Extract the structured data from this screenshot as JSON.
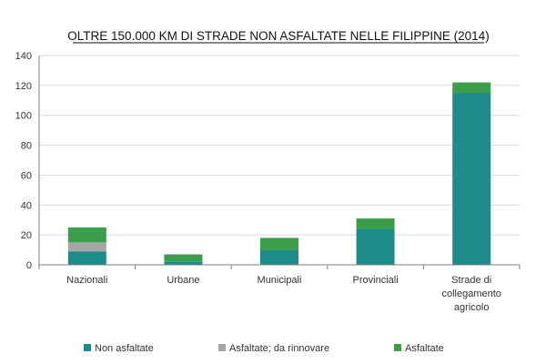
{
  "chart_data": {
    "type": "bar",
    "stacked": true,
    "title": "OLTRE 150.000 KM DI STRADE NON ASFALTATE NELLE FILIPPINE (2014)",
    "categories": [
      [
        "Nazionali"
      ],
      [
        "Urbane"
      ],
      [
        "Municipali"
      ],
      [
        "Provinciali"
      ],
      [
        "Strade di",
        "collegamento",
        "agricolo"
      ]
    ],
    "series": [
      {
        "name": "Non asfaltate",
        "color": "#1f8a8a",
        "values": [
          9,
          2,
          10,
          24,
          115
        ]
      },
      {
        "name": "Asfaltate; da rinnovare",
        "color": "#a6a6a6",
        "values": [
          6,
          0,
          0,
          0,
          0
        ]
      },
      {
        "name": "Asfaltate",
        "color": "#3a9e4a",
        "values": [
          10,
          5,
          8,
          7,
          7
        ]
      }
    ],
    "ylim": [
      0,
      140
    ],
    "yticks": [
      0,
      20,
      40,
      60,
      80,
      100,
      120,
      140
    ],
    "grid": true,
    "legend_position": "bottom"
  }
}
